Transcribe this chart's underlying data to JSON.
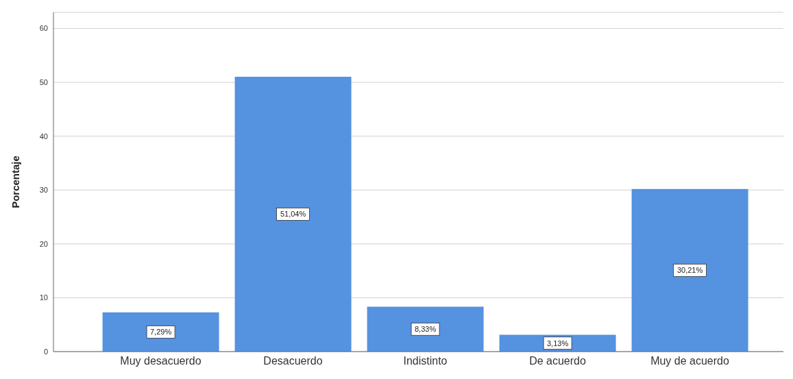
{
  "chart_data": {
    "type": "bar",
    "ylabel": "Porcentaje",
    "categories": [
      "Muy desacuerdo",
      "Desacuerdo",
      "Indistinto",
      "De acuerdo",
      "Muy de acuerdo"
    ],
    "values": [
      7.29,
      51.04,
      8.33,
      3.13,
      30.21
    ],
    "value_labels": [
      "7,29%",
      "51,04%",
      "8,33%",
      "3,13%",
      "30,21%"
    ],
    "color": "#5592e0",
    "ylim": [
      0,
      63
    ],
    "yticks": [
      0,
      10,
      20,
      30,
      40,
      50,
      60
    ],
    "grid": "y"
  }
}
